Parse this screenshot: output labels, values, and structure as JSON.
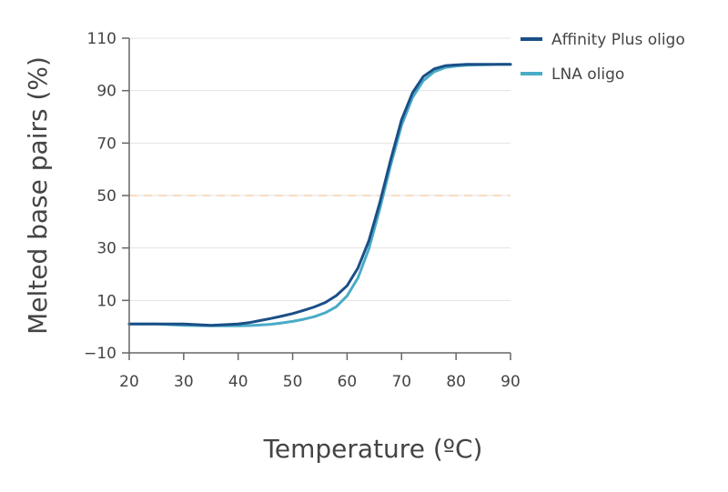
{
  "chart_data": {
    "type": "line",
    "title": "",
    "xlabel": "Temperature (ºC)",
    "ylabel": "Melted base pairs (%)",
    "xlim": [
      20,
      90
    ],
    "ylim": [
      -10,
      110
    ],
    "xticks": [
      "20",
      "30",
      "40",
      "50",
      "60",
      "70",
      "80",
      "90"
    ],
    "yticks": [
      "110",
      "90",
      "70",
      "50",
      "30",
      "10",
      "−10"
    ],
    "ytick_values": [
      110,
      90,
      70,
      50,
      30,
      10,
      -10
    ],
    "xtick_values": [
      20,
      30,
      40,
      50,
      60,
      70,
      80,
      90
    ],
    "grid": "horizontal",
    "legend_position": "top-right, outside plot",
    "reference_line": {
      "y": 50,
      "style": "dashed",
      "color": "#f9cfa8"
    },
    "series": [
      {
        "name": "Affinity Plus oligo",
        "color": "#1a4f86",
        "x": [
          20,
          25,
          30,
          35,
          40,
          42,
          44,
          46,
          48,
          50,
          52,
          54,
          56,
          58,
          60,
          62,
          64,
          66,
          68,
          70,
          72,
          74,
          76,
          78,
          80,
          82,
          84,
          86,
          88,
          90
        ],
        "y": [
          1,
          1,
          1,
          0.5,
          1,
          1.5,
          2.3,
          3.1,
          4,
          5,
          6.2,
          7.5,
          9.2,
          11.8,
          15.6,
          22.4,
          32.8,
          47.2,
          63.6,
          78.9,
          89.2,
          95.4,
          98.3,
          99.5,
          99.8,
          100,
          100,
          100,
          100,
          100
        ]
      },
      {
        "name": "LNA oligo",
        "color": "#4aabc7",
        "x": [
          20,
          25,
          30,
          35,
          40,
          42,
          44,
          46,
          48,
          50,
          52,
          54,
          56,
          58,
          60,
          62,
          64,
          66,
          68,
          70,
          72,
          74,
          76,
          78,
          80,
          82,
          84,
          86,
          88,
          90
        ],
        "y": [
          1,
          1,
          0.5,
          0.3,
          0.3,
          0.4,
          0.6,
          0.9,
          1.4,
          2,
          2.8,
          3.8,
          5.3,
          7.6,
          11.7,
          18.6,
          29.7,
          44.8,
          61.6,
          76.8,
          87.4,
          93.8,
          97.2,
          98.8,
          99.4,
          99.7,
          99.8,
          99.9,
          100,
          100
        ]
      }
    ]
  }
}
